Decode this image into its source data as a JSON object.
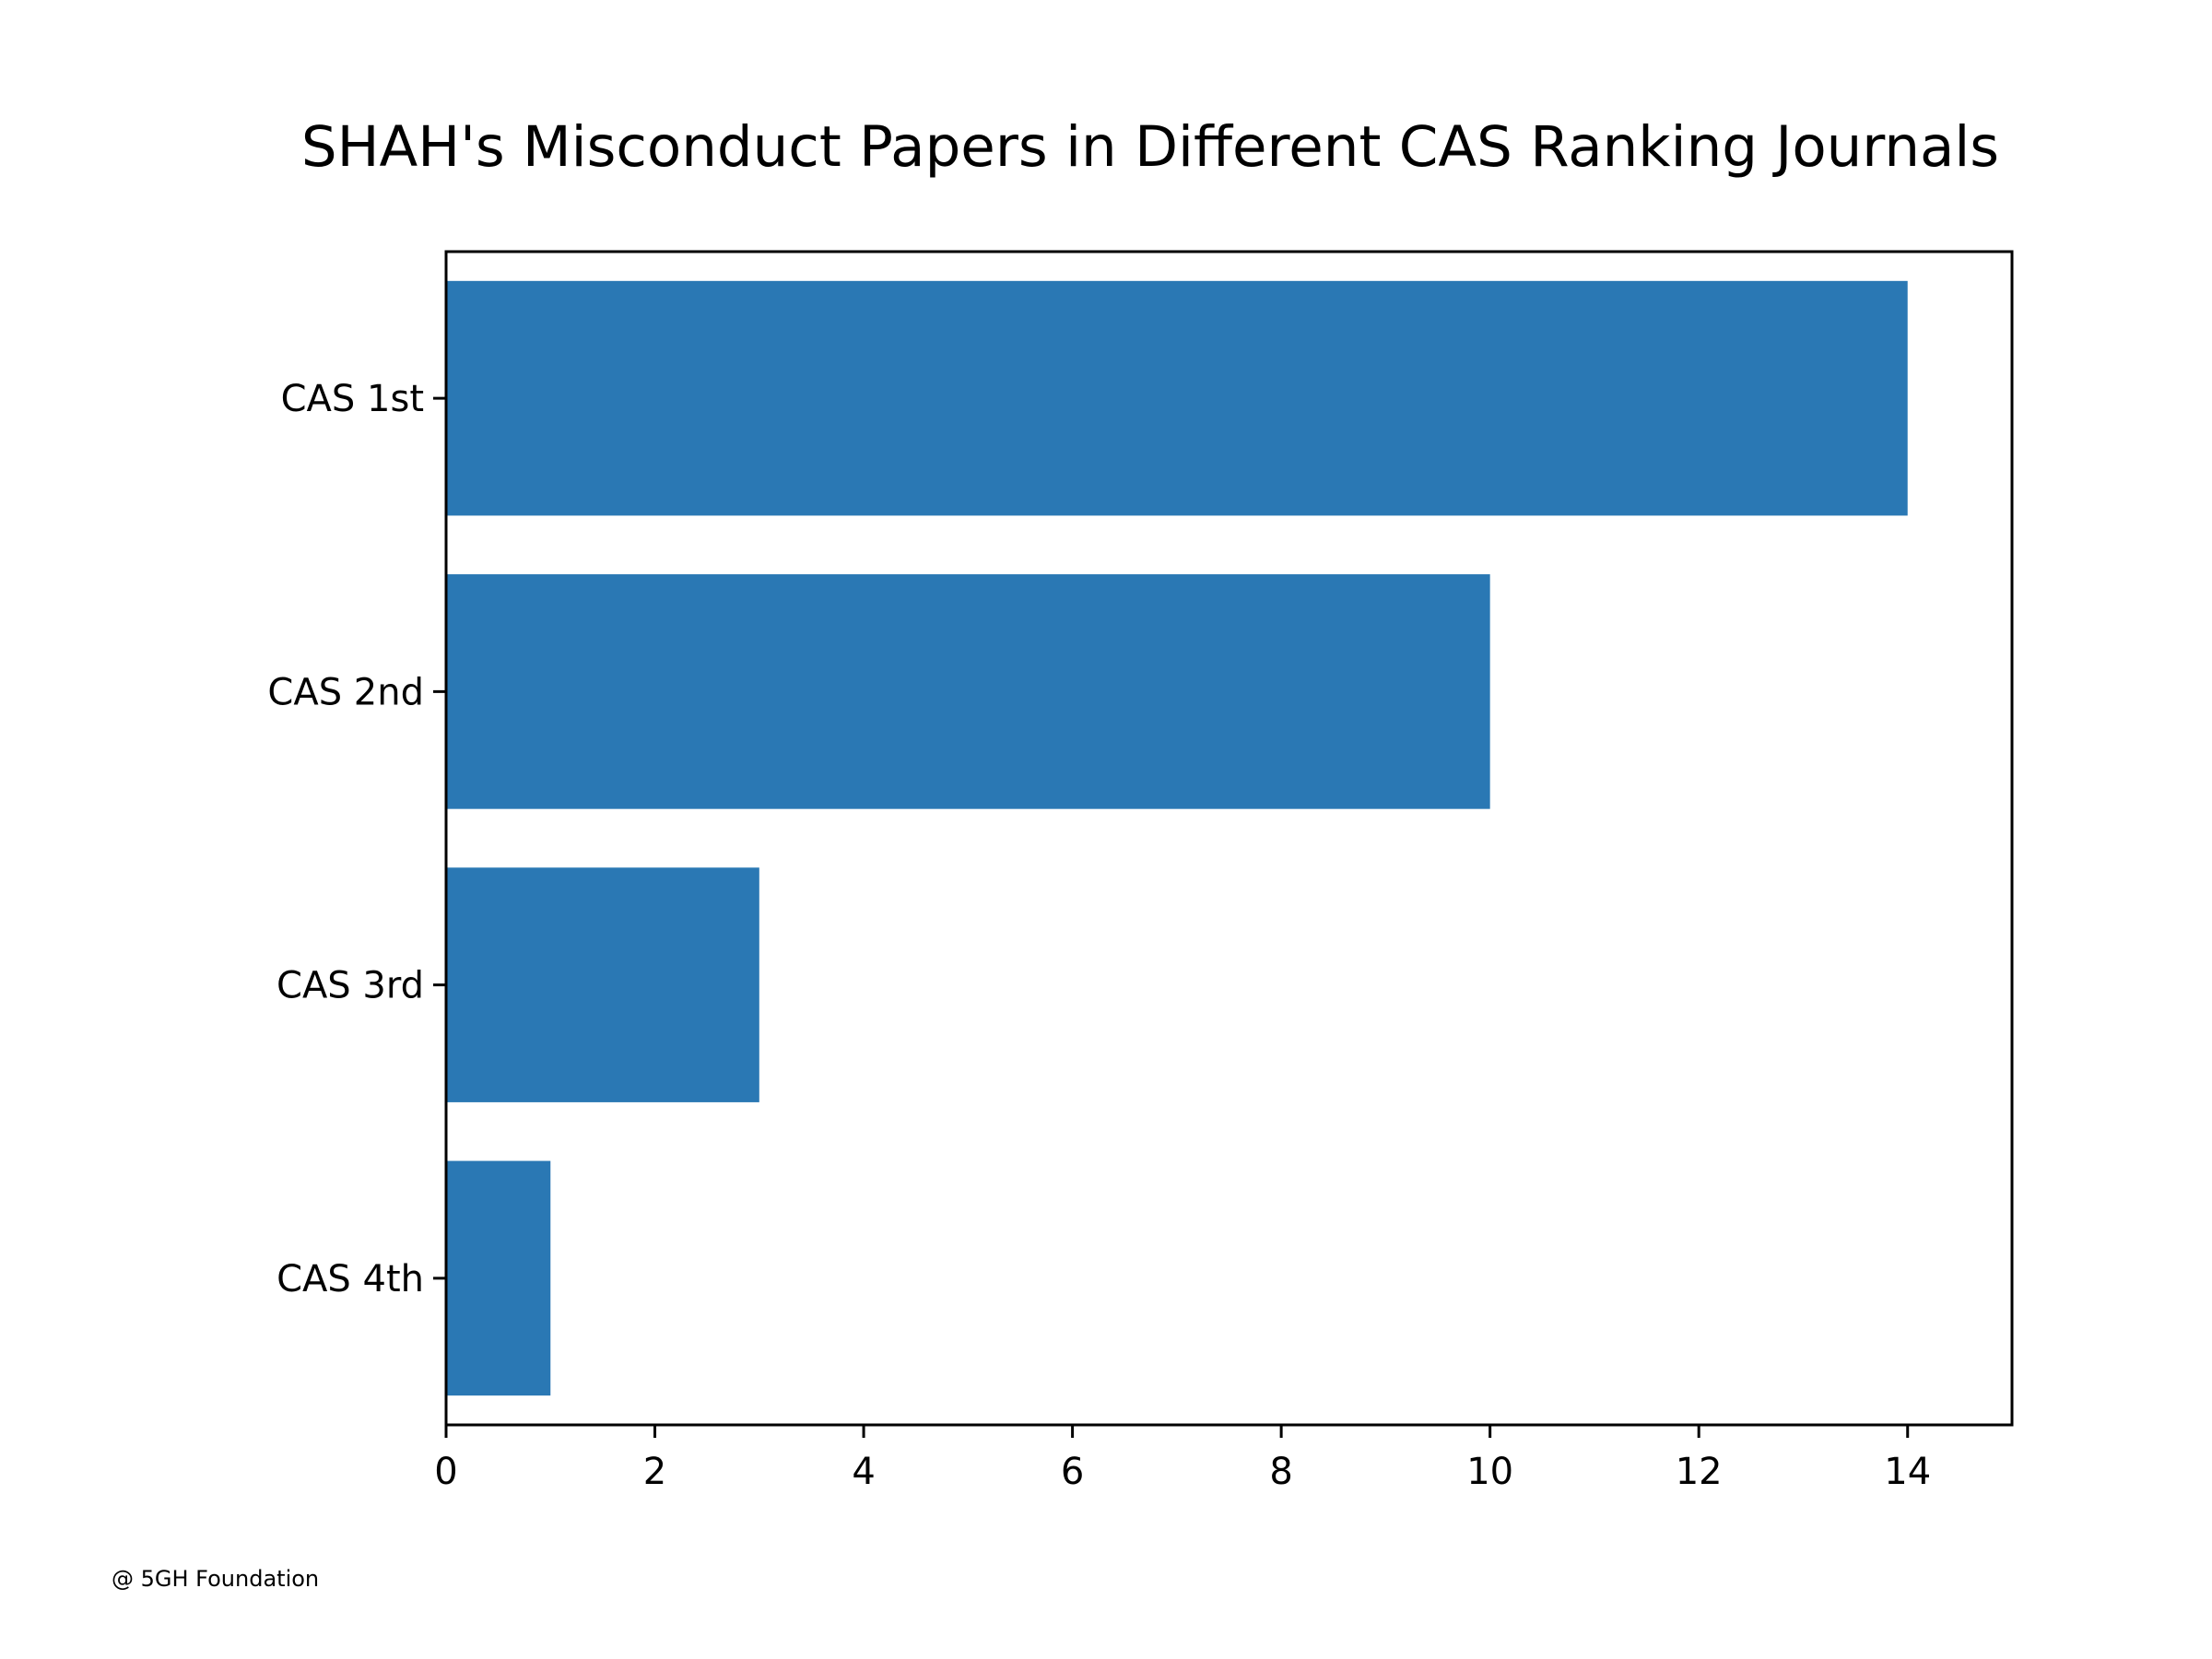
{
  "chart_data": {
    "type": "bar",
    "orientation": "horizontal",
    "title": "SHAH's Misconduct Papers in Different CAS Ranking Journals",
    "xlabel": "",
    "ylabel": "",
    "categories": [
      "CAS 1st",
      "CAS 2nd",
      "CAS 3rd",
      "CAS 4th"
    ],
    "values": [
      14,
      10,
      3,
      1
    ],
    "xlim": [
      0,
      15
    ],
    "xticks": [
      0,
      2,
      4,
      6,
      8,
      10,
      12,
      14
    ],
    "grid": false,
    "legend": "none",
    "bar_color": "#2a78b4"
  },
  "footer": {
    "credit": "@ 5GH Foundation"
  }
}
